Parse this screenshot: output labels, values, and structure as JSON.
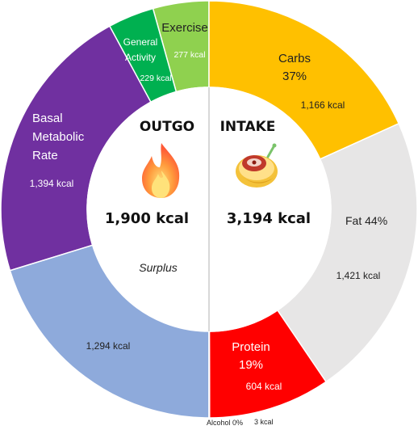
{
  "chart_data": {
    "type": "pie",
    "outgo": {
      "title": "OUTGO",
      "total_label": "1,900 kcal",
      "icon": "fire-icon",
      "segments": [
        {
          "label": "Exercise",
          "value_label": "277 kcal",
          "value": 277,
          "color": "#8fd14f"
        },
        {
          "label": "General Activity",
          "value_label": "229 kcal",
          "value": 229,
          "color": "#00b050"
        },
        {
          "label": "Basal Metabolic Rate",
          "value_label": "1,394 kcal",
          "value": 1394,
          "color": "#7030a0"
        },
        {
          "label": "Surplus",
          "value_label": "1,294 kcal",
          "value": 1294,
          "color": "#8eaadb"
        }
      ]
    },
    "intake": {
      "title": "INTAKE",
      "total_label": "3,194 kcal",
      "icon": "food-plate-icon",
      "segments": [
        {
          "label": "Carbs",
          "pct_label": "37%",
          "value_label": "1,166 kcal",
          "value": 1166,
          "color": "#ffc000"
        },
        {
          "label": "Fat",
          "pct_label": "44%",
          "value_label": "1,421 kcal",
          "value": 1421,
          "color": "#e7e6e6"
        },
        {
          "label": "Protein",
          "pct_label": "19%",
          "value_label": "604 kcal",
          "value": 604,
          "color": "#ff0000"
        },
        {
          "label": "Alcohol",
          "pct_label": "0%",
          "value_label": "3 kcal",
          "value": 3,
          "color": "#c00000"
        }
      ]
    }
  }
}
